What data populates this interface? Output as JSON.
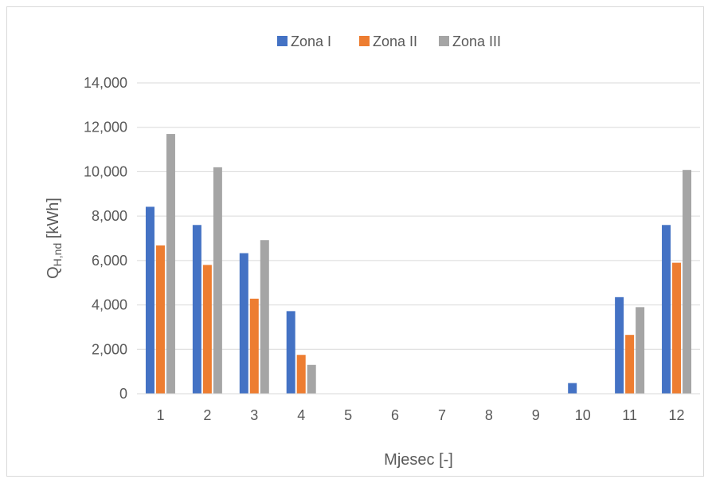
{
  "chart_data": {
    "type": "bar",
    "title": "",
    "xlabel": "Mjesec [-]",
    "ylabel_main": "Q",
    "ylabel_sub": "H,nd",
    "ylabel_rest": " [kWh]",
    "categories": [
      "1",
      "2",
      "3",
      "4",
      "5",
      "6",
      "7",
      "8",
      "9",
      "10",
      "11",
      "12"
    ],
    "ylim": [
      0,
      14000
    ],
    "yticks": [
      0,
      2000,
      4000,
      6000,
      8000,
      10000,
      12000,
      14000
    ],
    "ytick_labels": [
      "0",
      "2,000",
      "4,000",
      "6,000",
      "8,000",
      "10,000",
      "12,000",
      "14,000"
    ],
    "grid": true,
    "legend_position": "top-center",
    "series": [
      {
        "name": "Zona I",
        "color": "#4472C4",
        "values": [
          8420,
          7600,
          6330,
          3720,
          0,
          0,
          0,
          0,
          0,
          480,
          4350,
          7600
        ]
      },
      {
        "name": "Zona II",
        "color": "#ED7D31",
        "values": [
          6680,
          5800,
          4280,
          1750,
          0,
          0,
          0,
          0,
          0,
          0,
          2650,
          5900
        ]
      },
      {
        "name": "Zona III",
        "color": "#A5A5A5",
        "values": [
          11700,
          10200,
          6920,
          1300,
          0,
          0,
          0,
          0,
          0,
          0,
          3900,
          10080
        ]
      }
    ]
  }
}
